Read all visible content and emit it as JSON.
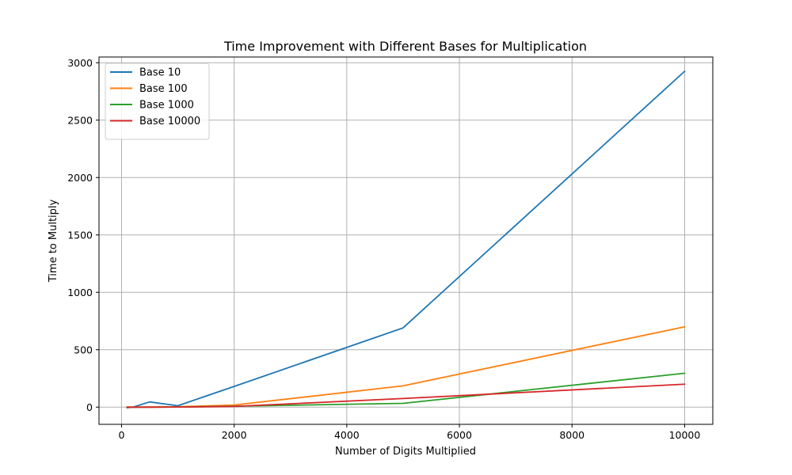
{
  "chart_data": {
    "type": "line",
    "title": "Time Improvement with Different Bases for Multiplication",
    "xlabel": "Number of Digits Multiplied",
    "ylabel": "Time to Multiply",
    "xlim": [
      -400,
      10500
    ],
    "ylim": [
      -150,
      3050
    ],
    "xticks": [
      0,
      2000,
      4000,
      6000,
      8000,
      10000
    ],
    "yticks": [
      0,
      500,
      1000,
      1500,
      2000,
      2500,
      3000
    ],
    "grid": true,
    "legend_position": "upper-left",
    "series": [
      {
        "name": "Base 10",
        "color": "#1f77b4",
        "x": [
          100,
          200,
          500,
          1000,
          2000,
          5000,
          10000
        ],
        "y": [
          -5,
          0,
          45,
          12,
          180,
          690,
          2925
        ]
      },
      {
        "name": "Base 100",
        "color": "#ff7f0e",
        "x": [
          100,
          200,
          500,
          1000,
          2000,
          5000,
          10000
        ],
        "y": [
          0,
          0,
          1,
          3,
          18,
          185,
          700
        ]
      },
      {
        "name": "Base 1000",
        "color": "#2ca02c",
        "x": [
          100,
          200,
          500,
          1000,
          2000,
          5000,
          10000
        ],
        "y": [
          0,
          0,
          0,
          1,
          8,
          33,
          295
        ]
      },
      {
        "name": "Base 10000",
        "color": "#d62728",
        "x": [
          100,
          200,
          500,
          1000,
          2000,
          5000,
          10000
        ],
        "y": [
          0,
          0,
          0,
          1,
          6,
          75,
          200
        ]
      }
    ]
  }
}
